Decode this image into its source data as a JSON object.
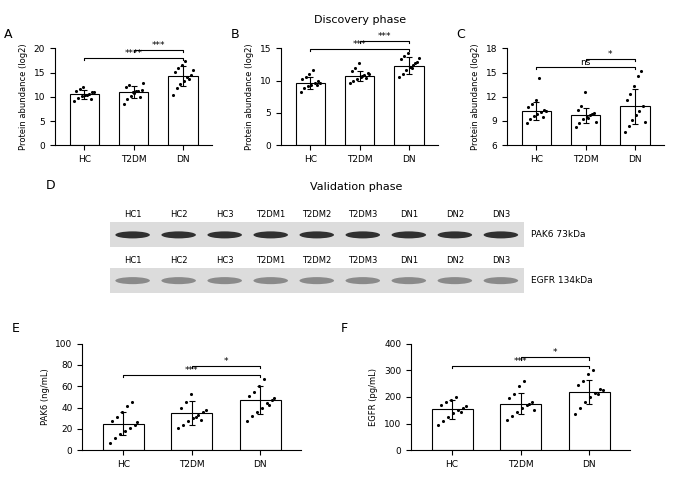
{
  "chart_data": [
    {
      "type": "bar",
      "label": "A",
      "y_label": "Protein abundance (log2)",
      "categories": [
        "HC",
        "T2DM",
        "DN"
      ],
      "values": [
        10.5,
        11.0,
        14.3
      ],
      "errors": [
        0.9,
        1.3,
        2.0
      ],
      "points": [
        [
          9.2,
          9.8,
          10.1,
          10.4,
          10.6,
          10.9,
          11.2,
          11.6,
          12.0,
          10.3,
          9.6,
          11.0
        ],
        [
          8.6,
          9.5,
          10.2,
          10.7,
          11.1,
          11.5,
          12.0,
          12.5,
          10.9,
          11.3,
          9.9,
          12.8
        ],
        [
          10.4,
          11.8,
          12.6,
          13.3,
          14.0,
          14.6,
          15.2,
          15.9,
          16.6,
          17.3,
          13.7,
          15.5
        ]
      ],
      "color": "#ffffff",
      "ylim": [
        0,
        20
      ],
      "yticks": [
        0,
        5,
        10,
        15,
        20
      ],
      "comparisons": [
        {
          "groups": [
            "HC",
            "DN"
          ],
          "label": "****"
        },
        {
          "groups": [
            "T2DM",
            "DN"
          ],
          "label": "***"
        }
      ]
    },
    {
      "type": "bar",
      "label": "B",
      "title": "Discovery phase",
      "y_label": "Protein abundance (log2)",
      "categories": [
        "HC",
        "T2DM",
        "DN"
      ],
      "values": [
        9.6,
        10.7,
        12.3
      ],
      "errors": [
        0.9,
        0.8,
        1.3
      ],
      "points": [
        [
          8.3,
          8.8,
          9.1,
          9.4,
          9.6,
          9.9,
          10.2,
          10.6,
          11.0,
          11.6,
          9.3,
          9.7
        ],
        [
          9.6,
          10.0,
          10.3,
          10.6,
          10.9,
          11.2,
          11.5,
          12.0,
          12.8,
          10.8,
          10.4,
          11.1
        ],
        [
          10.5,
          11.0,
          11.6,
          12.1,
          12.5,
          12.9,
          13.3,
          13.8,
          14.3,
          11.9,
          12.7,
          13.5
        ]
      ],
      "color": "#ffffff",
      "ylim": [
        0,
        15
      ],
      "yticks": [
        0,
        5,
        10,
        15
      ],
      "comparisons": [
        {
          "groups": [
            "HC",
            "DN"
          ],
          "label": "***"
        },
        {
          "groups": [
            "T2DM",
            "DN"
          ],
          "label": "***"
        }
      ]
    },
    {
      "type": "bar",
      "label": "C",
      "y_label": "Protein abundance (log2)",
      "categories": [
        "HC",
        "T2DM",
        "DN"
      ],
      "values": [
        10.2,
        9.7,
        10.8
      ],
      "errors": [
        1.1,
        0.9,
        2.2
      ],
      "points": [
        [
          8.7,
          9.2,
          9.6,
          9.9,
          10.1,
          10.4,
          10.7,
          11.1,
          11.6,
          14.3,
          9.5,
          10.3
        ],
        [
          8.2,
          8.8,
          9.2,
          9.5,
          9.7,
          10.0,
          10.4,
          10.9,
          12.6,
          9.4,
          9.9,
          8.9
        ],
        [
          7.6,
          8.4,
          9.1,
          9.7,
          10.3,
          10.9,
          11.6,
          12.4,
          13.4,
          14.6,
          15.2,
          8.9
        ]
      ],
      "color": "#ffffff",
      "ylim": [
        6,
        18
      ],
      "yticks": [
        6,
        9,
        12,
        15,
        18
      ],
      "comparisons": [
        {
          "groups": [
            "HC",
            "DN"
          ],
          "label": "ns"
        },
        {
          "groups": [
            "T2DM",
            "DN"
          ],
          "label": "*"
        }
      ]
    },
    {
      "type": "blot",
      "label": "D",
      "title": "Validation phase",
      "lanes": [
        "HC1",
        "HC2",
        "HC3",
        "T2DM1",
        "T2DM2",
        "T2DM3",
        "DN1",
        "DN2",
        "DN3"
      ],
      "blots": [
        {
          "name": "PAK6 73kDa",
          "color": "#303030"
        },
        {
          "name": "EGFR 134kDa",
          "color": "#8a8a8a"
        }
      ]
    },
    {
      "type": "bar",
      "label": "E",
      "y_label": "PAK6 (ng/mL)",
      "categories": [
        "HC",
        "T2DM",
        "DN"
      ],
      "values": [
        25,
        35,
        47
      ],
      "errors": [
        11,
        11,
        13
      ],
      "points": [
        [
          7,
          11,
          15,
          18,
          21,
          24,
          27,
          31,
          36,
          41,
          45,
          26
        ],
        [
          21,
          24,
          27,
          30,
          33,
          36,
          40,
          45,
          53,
          31,
          28,
          38
        ],
        [
          27,
          32,
          36,
          40,
          44,
          47,
          51,
          55,
          60,
          67,
          42,
          49
        ]
      ],
      "color": "#ffffff",
      "ylim": [
        0,
        100
      ],
      "yticks": [
        0,
        20,
        40,
        60,
        80,
        100
      ],
      "comparisons": [
        {
          "groups": [
            "HC",
            "DN"
          ],
          "label": "***"
        },
        {
          "groups": [
            "T2DM",
            "DN"
          ],
          "label": "*"
        }
      ]
    },
    {
      "type": "bar",
      "label": "F",
      "y_label": "EGFR (pg/mL)",
      "categories": [
        "HC",
        "T2DM",
        "DN"
      ],
      "values": [
        153,
        175,
        218
      ],
      "errors": [
        36,
        40,
        45
      ],
      "points": [
        [
          95,
          110,
          125,
          140,
          150,
          160,
          170,
          180,
          190,
          200,
          145,
          165
        ],
        [
          115,
          130,
          145,
          160,
          170,
          180,
          195,
          210,
          240,
          260,
          175,
          150
        ],
        [
          135,
          160,
          180,
          200,
          215,
          230,
          245,
          260,
          285,
          300,
          210,
          225
        ]
      ],
      "color": "#ffffff",
      "ylim": [
        0,
        400
      ],
      "yticks": [
        0,
        100,
        200,
        300,
        400
      ],
      "comparisons": [
        {
          "groups": [
            "HC",
            "DN"
          ],
          "label": "***"
        },
        {
          "groups": [
            "T2DM",
            "DN"
          ],
          "label": "*"
        }
      ]
    }
  ]
}
